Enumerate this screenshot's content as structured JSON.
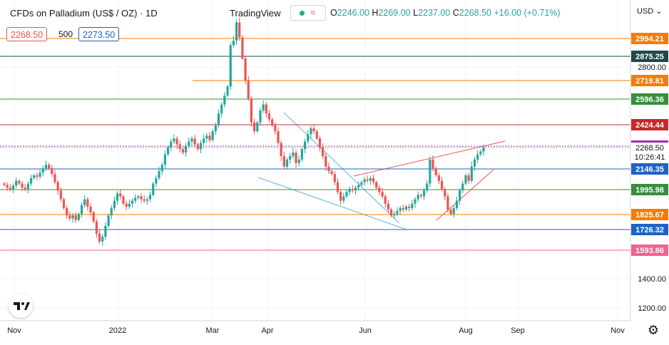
{
  "header": {
    "symbol": "CFDs on Palladium (US$ / OZ) · 1D",
    "source": "TradingView",
    "ohlc": {
      "o_label": "O",
      "o": "2246.00",
      "h_label": "H",
      "h": "2269.00",
      "l_label": "L",
      "l": "2237.00",
      "c_label": "C",
      "c": "2268.50",
      "change": "+16.00 (+0.71%)"
    },
    "bid": "2268.50",
    "spread": "500",
    "ask": "2273.50"
  },
  "currency_button": "USD",
  "colors": {
    "up": "#26a69a",
    "down": "#ef5350",
    "orange": "#f57c00",
    "dark_teal": "#1b4b4b",
    "green": "#388e3c",
    "red": "#c62828",
    "purple": "#9c27b0",
    "blue": "#1e63c4",
    "pink": "#f06292",
    "channel_blue": "#5fb6e0",
    "channel_red": "#ef5350"
  },
  "chart_data": {
    "type": "candlestick",
    "x_ticks": [
      "Nov",
      "2022",
      "Mar",
      "Apr",
      "Jun",
      "Aug",
      "Sep",
      "Nov"
    ],
    "y_ticks": [
      "2800.00",
      "1400.00",
      "1200.00"
    ],
    "ylim": [
      1100,
      3200
    ],
    "levels": [
      {
        "value": 2994.21,
        "label": "2994.21",
        "color": "#f57c00"
      },
      {
        "value": 2875.25,
        "label": "2875.25",
        "color": "#1b4b4b"
      },
      {
        "value": 2719.81,
        "label": "2719.81",
        "color": "#f57c00"
      },
      {
        "value": 2596.36,
        "label": "2596.36",
        "color": "#388e3c"
      },
      {
        "value": 2424.44,
        "label": "2424.44",
        "color": "#c62828"
      },
      {
        "value": 2277.81,
        "label": "2277.81",
        "color": "#9c27b0"
      },
      {
        "value": 2146.35,
        "label": "2146.35",
        "color": "#1e63c4"
      },
      {
        "value": 1995.98,
        "label": "1995.98",
        "color": "#388e3c"
      },
      {
        "value": 1825.67,
        "label": "1825.67",
        "color": "#f57c00"
      },
      {
        "value": 1726.32,
        "label": "1726.32",
        "color": "#1e63c4"
      },
      {
        "value": 1593.86,
        "label": "1593.86",
        "color": "#f06292"
      }
    ],
    "last_price": {
      "value": 2268.5,
      "label": "2268.50",
      "countdown": "10:26:41"
    },
    "closes": [
      2030,
      2010,
      2000,
      2025,
      2060,
      2040,
      2010,
      2000,
      2040,
      2080,
      2100,
      2090,
      2120,
      2150,
      2170,
      2150,
      2110,
      2050,
      1990,
      1930,
      1870,
      1820,
      1800,
      1820,
      1790,
      1830,
      1890,
      1930,
      1880,
      1840,
      1780,
      1700,
      1650,
      1680,
      1750,
      1820,
      1870,
      1920,
      1970,
      1950,
      1900,
      1880,
      1900,
      1920,
      1940,
      1950,
      1930,
      1920,
      1930,
      1960,
      2040,
      2080,
      2130,
      2170,
      2230,
      2270,
      2310,
      2330,
      2290,
      2260,
      2240,
      2280,
      2310,
      2330,
      2290,
      2260,
      2300,
      2330,
      2350,
      2320,
      2380,
      2420,
      2500,
      2560,
      2620,
      2680,
      2950,
      2980,
      3080,
      3000,
      2860,
      2720,
      2600,
      2440,
      2380,
      2440,
      2520,
      2560,
      2500,
      2460,
      2420,
      2380,
      2300,
      2220,
      2160,
      2200,
      2220,
      2240,
      2180,
      2200,
      2260,
      2310,
      2360,
      2400,
      2380,
      2330,
      2270,
      2220,
      2160,
      2130,
      2110,
      2050,
      1980,
      1920,
      1950,
      1980,
      2000,
      1990,
      2010,
      2030,
      2050,
      2070,
      2060,
      2080,
      2050,
      2010,
      1980,
      1950,
      1900,
      1860,
      1820,
      1830,
      1850,
      1870,
      1860,
      1880,
      1870,
      1900,
      1930,
      1960,
      1950,
      1990,
      2040,
      2200,
      2150,
      2100,
      2060,
      2000,
      1950,
      1860,
      1830,
      1870,
      1920,
      1990,
      2040,
      2100,
      2060,
      2160,
      2200,
      2230,
      2246,
      2268.5
    ]
  }
}
